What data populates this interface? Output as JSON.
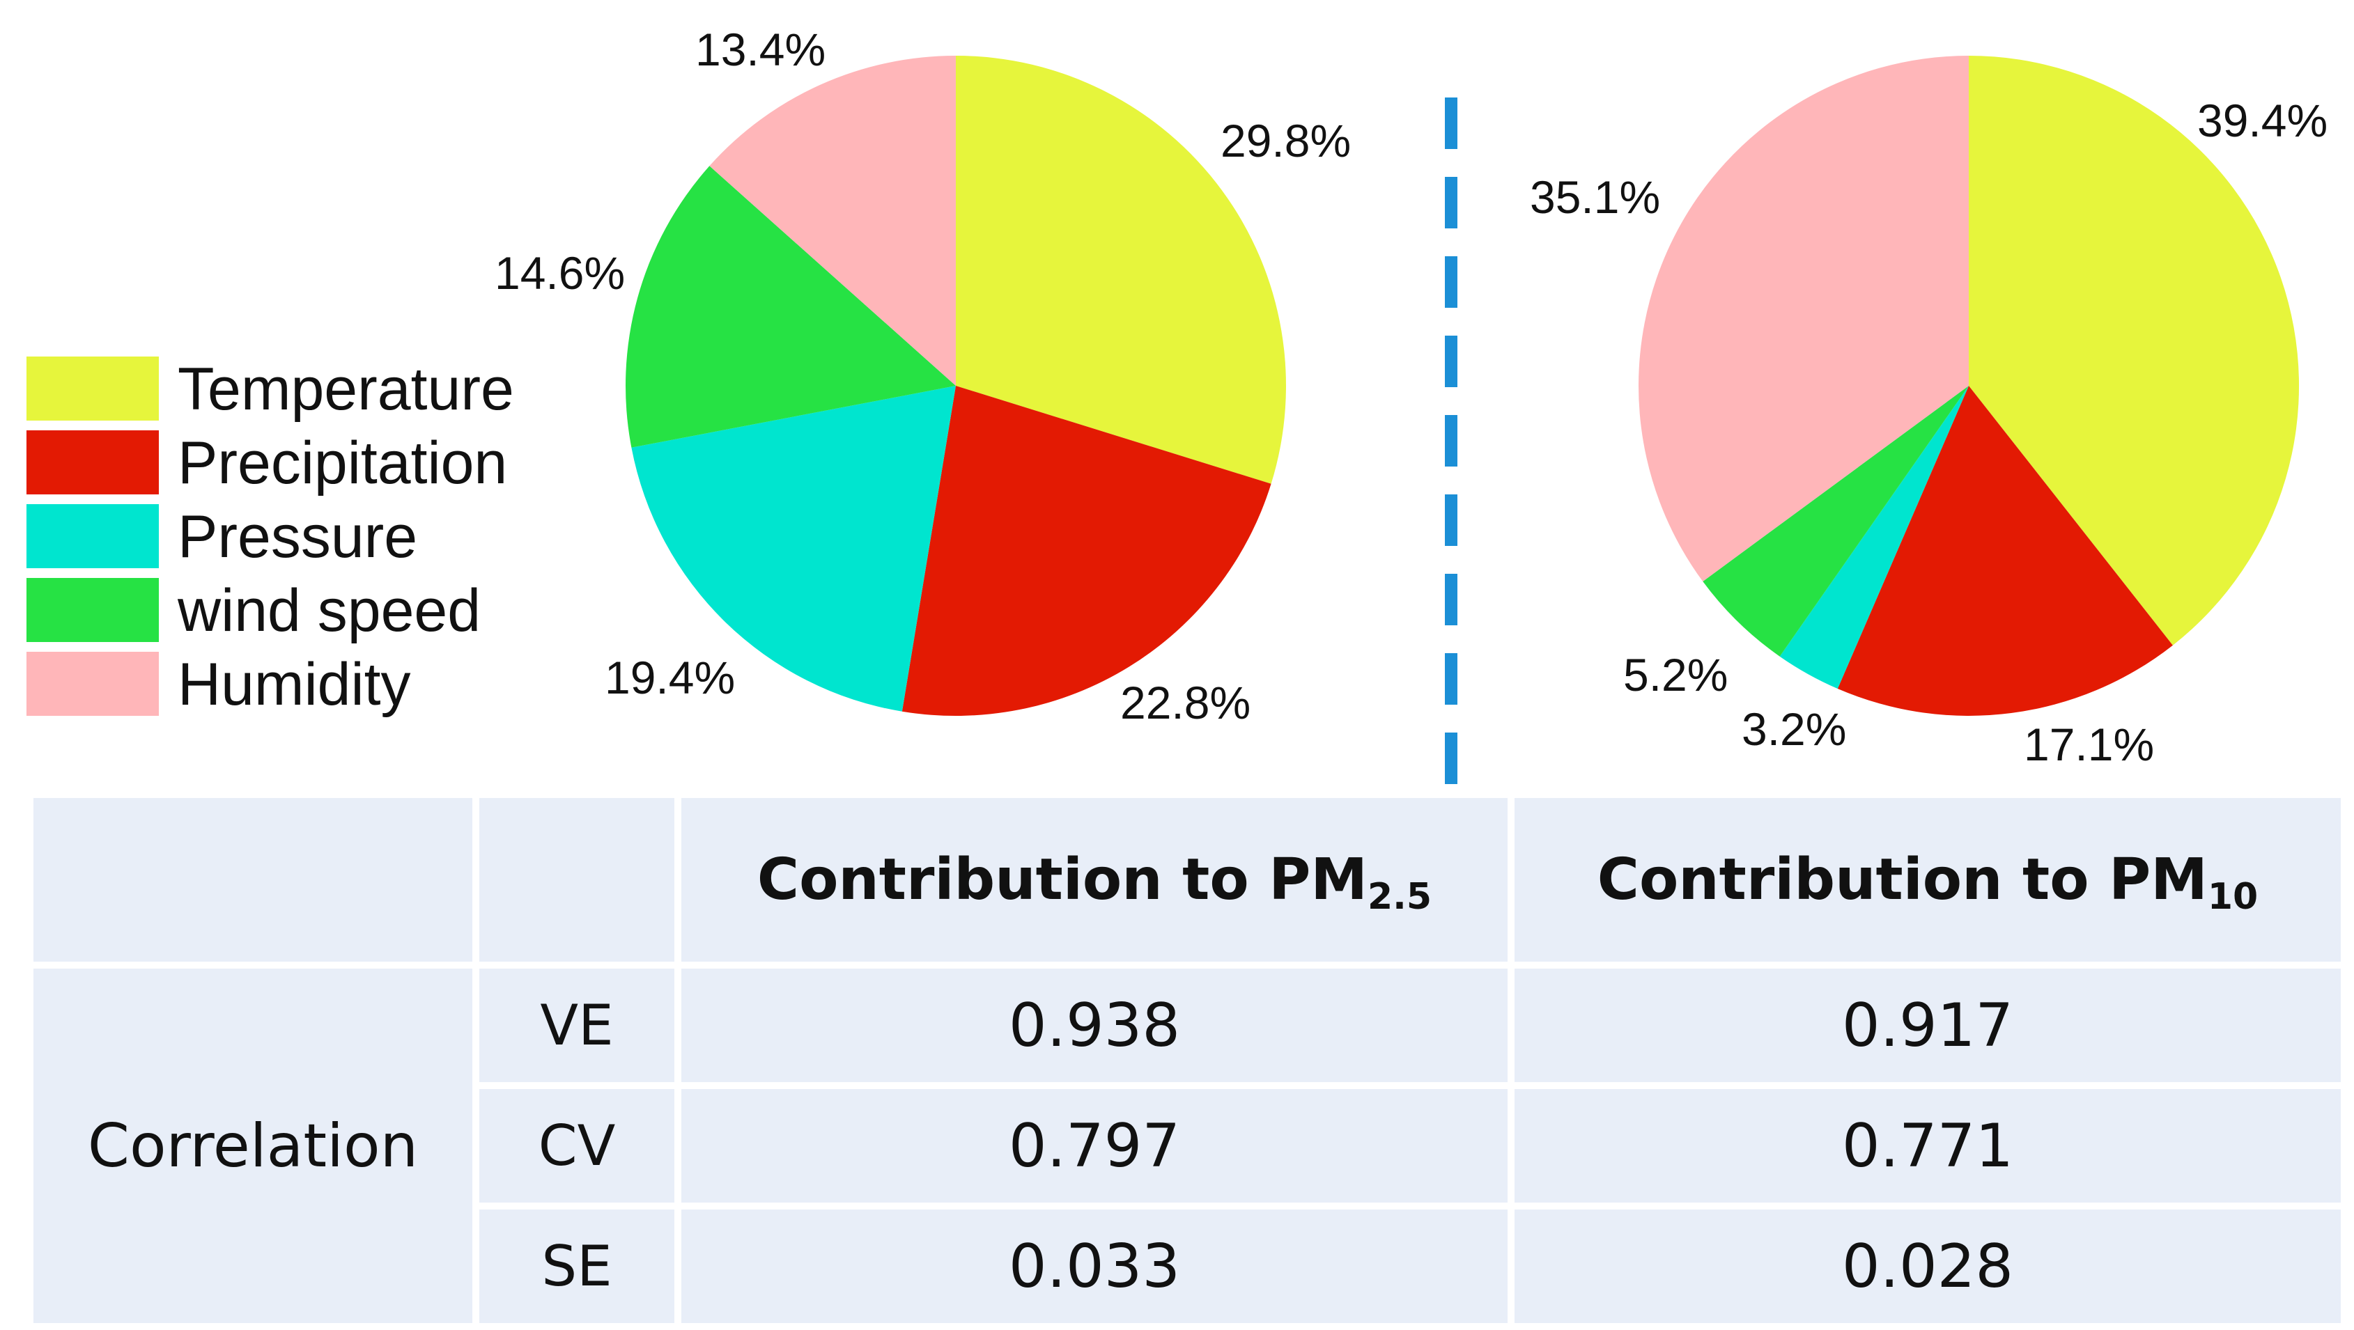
{
  "chart_data": [
    {
      "type": "pie",
      "labels": [
        "Temperature",
        "Precipitation",
        "Pressure",
        "wind speed",
        "Humidity"
      ],
      "values": [
        29.8,
        22.8,
        19.4,
        14.6,
        13.4
      ],
      "value_labels": [
        "29.8%",
        "22.8%",
        "19.4%",
        "14.6%",
        "13.4%"
      ]
    },
    {
      "type": "pie",
      "labels": [
        "Temperature",
        "Precipitation",
        "Pressure",
        "wind speed",
        "Humidity"
      ],
      "values": [
        39.4,
        17.1,
        3.2,
        5.2,
        35.1
      ],
      "value_labels": [
        "39.4%",
        "17.1%",
        "3.2%",
        "5.2%",
        "35.1%"
      ]
    }
  ],
  "legend": {
    "placement": "left",
    "items": [
      {
        "label": "Temperature",
        "color": "#e6f53c"
      },
      {
        "label": "Precipitation",
        "color": "#e31a03"
      },
      {
        "label": "Pressure",
        "color": "#00e5cf"
      },
      {
        "label": "wind speed",
        "color": "#26e244"
      },
      {
        "label": "Humidity",
        "color": "#ffb6b9"
      }
    ]
  },
  "table": {
    "col_pm25_main": "Contribution to PM",
    "col_pm25_sub": "2.5",
    "col_pm10_main": "Contribution to PM",
    "col_pm10_sub": "10",
    "row_group": "Correlation",
    "rows": [
      {
        "metric": "VE",
        "pm25": "0.938",
        "pm10": "0.917"
      },
      {
        "metric": "CV",
        "pm25": "0.797",
        "pm10": "0.771"
      },
      {
        "metric": "SE",
        "pm25": "0.033",
        "pm10": "0.028"
      }
    ]
  },
  "colors": {
    "table_bg": "#e8eef8",
    "divider": "#1b8fd6"
  }
}
